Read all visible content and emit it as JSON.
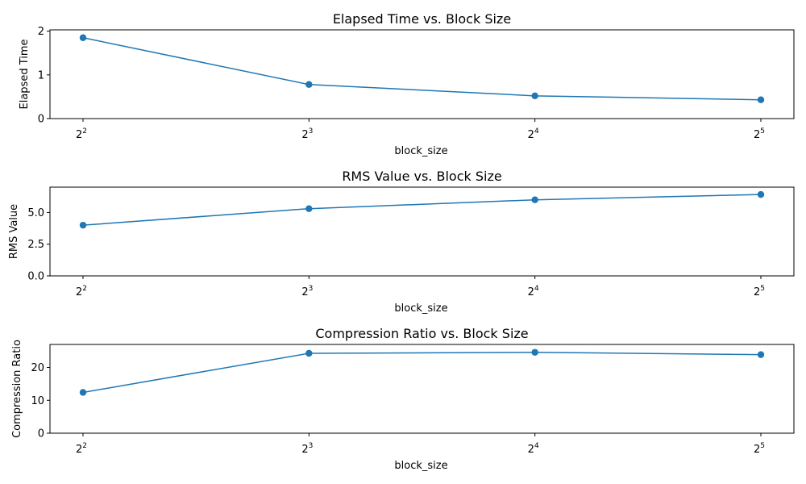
{
  "chart_data": [
    {
      "type": "line",
      "title": "Elapsed Time vs. Block Size",
      "xlabel": "block_size",
      "ylabel": "Elapsed Time",
      "x_scale": "log2",
      "x": [
        4,
        8,
        16,
        32
      ],
      "x_tick_labels": [
        {
          "base": "2",
          "exp": "2"
        },
        {
          "base": "2",
          "exp": "3"
        },
        {
          "base": "2",
          "exp": "4"
        },
        {
          "base": "2",
          "exp": "5"
        }
      ],
      "y_ticks": [
        0,
        1,
        2
      ],
      "y_tick_labels": [
        "0",
        "1",
        "2"
      ],
      "ylim": [
        0,
        2.03
      ],
      "series": [
        {
          "values": [
            1.85,
            0.78,
            0.52,
            0.43
          ],
          "color": "#1f77b4",
          "marker": "circle"
        }
      ],
      "grid": false
    },
    {
      "type": "line",
      "title": "RMS Value vs. Block Size",
      "xlabel": "block_size",
      "ylabel": "RMS Value",
      "x_scale": "log2",
      "x": [
        4,
        8,
        16,
        32
      ],
      "x_tick_labels": [
        {
          "base": "2",
          "exp": "2"
        },
        {
          "base": "2",
          "exp": "3"
        },
        {
          "base": "2",
          "exp": "4"
        },
        {
          "base": "2",
          "exp": "5"
        }
      ],
      "y_ticks": [
        0,
        2.5,
        5
      ],
      "y_tick_labels": [
        "0.0",
        "2.5",
        "5.0"
      ],
      "ylim": [
        0,
        7.0
      ],
      "series": [
        {
          "values": [
            4.0,
            5.3,
            6.0,
            6.42
          ],
          "color": "#1f77b4",
          "marker": "circle"
        }
      ],
      "grid": false
    },
    {
      "type": "line",
      "title": "Compression Ratio vs. Block Size",
      "xlabel": "block_size",
      "ylabel": "Compression Ratio",
      "x_scale": "log2",
      "x": [
        4,
        8,
        16,
        32
      ],
      "x_tick_labels": [
        {
          "base": "2",
          "exp": "2"
        },
        {
          "base": "2",
          "exp": "3"
        },
        {
          "base": "2",
          "exp": "4"
        },
        {
          "base": "2",
          "exp": "5"
        }
      ],
      "y_ticks": [
        0,
        10,
        20
      ],
      "y_tick_labels": [
        "0",
        "10",
        "20"
      ],
      "ylim": [
        0,
        27.0
      ],
      "series": [
        {
          "values": [
            12.4,
            24.3,
            24.6,
            23.9
          ],
          "color": "#1f77b4",
          "marker": "circle"
        }
      ],
      "grid": false
    }
  ]
}
